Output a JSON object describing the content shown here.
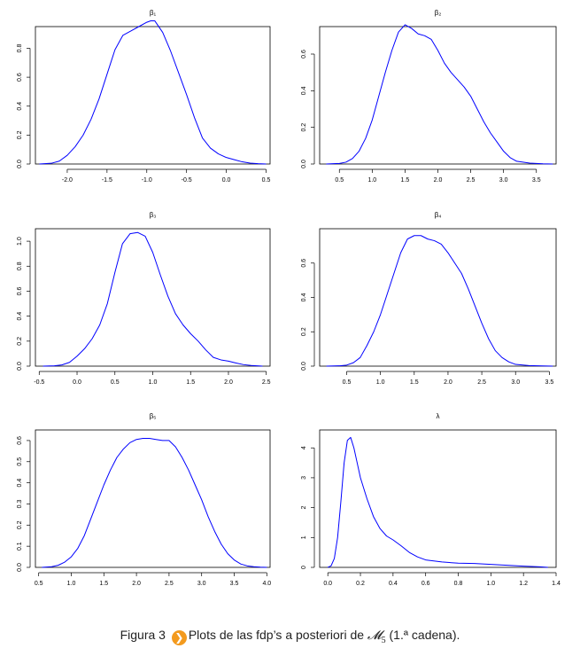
{
  "chart_data": [
    {
      "type": "line",
      "title": "β₁",
      "xlabel": "",
      "ylabel": "",
      "xlim": [
        -2.4,
        0.55
      ],
      "ylim": [
        0,
        0.95
      ],
      "xticks": [
        -2.0,
        -1.5,
        -1.0,
        -0.5,
        0.0,
        0.5
      ],
      "xtick_labels": [
        "-2.0",
        "-1.5",
        "-1.0",
        "-0.5",
        "0.0",
        "0.5"
      ],
      "yticks": [
        0.0,
        0.2,
        0.4,
        0.6,
        0.8
      ],
      "ytick_labels": [
        "0.0",
        "0.2",
        "0.4",
        "0.6",
        "0.8"
      ],
      "series": [
        {
          "color": "#0000ff",
          "x": [
            -2.35,
            -2.2,
            -2.1,
            -2.0,
            -1.9,
            -1.8,
            -1.7,
            -1.6,
            -1.5,
            -1.4,
            -1.3,
            -1.2,
            -1.1,
            -1.0,
            -0.95,
            -0.9,
            -0.8,
            -0.7,
            -0.6,
            -0.5,
            -0.4,
            -0.3,
            -0.2,
            -0.1,
            0.0,
            0.1,
            0.2,
            0.3,
            0.4,
            0.5
          ],
          "y": [
            0.0,
            0.005,
            0.02,
            0.06,
            0.12,
            0.2,
            0.31,
            0.45,
            0.62,
            0.79,
            0.89,
            0.92,
            0.95,
            0.98,
            0.99,
            0.99,
            0.91,
            0.78,
            0.63,
            0.48,
            0.32,
            0.18,
            0.11,
            0.07,
            0.045,
            0.03,
            0.015,
            0.006,
            0.002,
            0.0
          ]
        }
      ]
    },
    {
      "type": "line",
      "title": "β₂",
      "xlabel": "",
      "ylabel": "",
      "xlim": [
        0.2,
        3.8
      ],
      "ylim": [
        0,
        0.75
      ],
      "xticks": [
        0.5,
        1.0,
        1.5,
        2.0,
        2.5,
        3.0,
        3.5
      ],
      "xtick_labels": [
        "0.5",
        "1.0",
        "1.5",
        "2.0",
        "2.5",
        "3.0",
        "3.5"
      ],
      "yticks": [
        0.0,
        0.2,
        0.4,
        0.6
      ],
      "ytick_labels": [
        "0.0",
        "0.2",
        "0.4",
        "0.6"
      ],
      "series": [
        {
          "color": "#0000ff",
          "x": [
            0.3,
            0.5,
            0.6,
            0.7,
            0.8,
            0.9,
            1.0,
            1.1,
            1.2,
            1.3,
            1.4,
            1.5,
            1.6,
            1.7,
            1.8,
            1.9,
            2.0,
            2.1,
            2.2,
            2.3,
            2.4,
            2.5,
            2.6,
            2.7,
            2.8,
            2.9,
            3.0,
            3.1,
            3.2,
            3.4,
            3.6,
            3.75
          ],
          "y": [
            0.0,
            0.003,
            0.01,
            0.03,
            0.07,
            0.14,
            0.24,
            0.37,
            0.5,
            0.62,
            0.72,
            0.76,
            0.74,
            0.71,
            0.7,
            0.68,
            0.62,
            0.55,
            0.5,
            0.46,
            0.42,
            0.37,
            0.3,
            0.23,
            0.17,
            0.12,
            0.07,
            0.035,
            0.015,
            0.005,
            0.001,
            0.0
          ]
        }
      ]
    },
    {
      "type": "line",
      "title": "β₃",
      "xlabel": "",
      "ylabel": "",
      "xlim": [
        -0.55,
        2.55
      ],
      "ylim": [
        0,
        1.1
      ],
      "xticks": [
        -0.5,
        0.0,
        0.5,
        1.0,
        1.5,
        2.0,
        2.5
      ],
      "xtick_labels": [
        "-0.5",
        "0.0",
        "0.5",
        "1.0",
        "1.5",
        "2.0",
        "2.5"
      ],
      "yticks": [
        0.0,
        0.2,
        0.4,
        0.6,
        0.8,
        1.0
      ],
      "ytick_labels": [
        "0.0",
        "0.2",
        "0.4",
        "0.6",
        "0.8",
        "1.0"
      ],
      "series": [
        {
          "color": "#0000ff",
          "x": [
            -0.45,
            -0.3,
            -0.2,
            -0.1,
            0.0,
            0.1,
            0.2,
            0.3,
            0.4,
            0.5,
            0.6,
            0.7,
            0.8,
            0.9,
            1.0,
            1.1,
            1.2,
            1.3,
            1.4,
            1.5,
            1.6,
            1.7,
            1.8,
            1.9,
            2.0,
            2.1,
            2.2,
            2.3,
            2.45
          ],
          "y": [
            0.0,
            0.003,
            0.01,
            0.03,
            0.08,
            0.14,
            0.22,
            0.33,
            0.5,
            0.75,
            0.98,
            1.06,
            1.07,
            1.04,
            0.91,
            0.73,
            0.56,
            0.42,
            0.33,
            0.26,
            0.2,
            0.13,
            0.07,
            0.05,
            0.04,
            0.025,
            0.012,
            0.005,
            0.0
          ]
        }
      ]
    },
    {
      "type": "line",
      "title": "β₄",
      "xlabel": "",
      "ylabel": "",
      "xlim": [
        0.1,
        3.6
      ],
      "ylim": [
        0,
        0.8
      ],
      "xticks": [
        0.5,
        1.0,
        1.5,
        2.0,
        2.5,
        3.0,
        3.5
      ],
      "xtick_labels": [
        "0.5",
        "1.0",
        "1.5",
        "2.0",
        "2.5",
        "3.0",
        "3.5"
      ],
      "yticks": [
        0.0,
        0.2,
        0.4,
        0.6
      ],
      "ytick_labels": [
        "0.0",
        "0.2",
        "0.4",
        "0.6"
      ],
      "series": [
        {
          "color": "#0000ff",
          "x": [
            0.2,
            0.4,
            0.5,
            0.6,
            0.7,
            0.8,
            0.9,
            1.0,
            1.1,
            1.2,
            1.3,
            1.4,
            1.5,
            1.6,
            1.7,
            1.8,
            1.9,
            2.0,
            2.1,
            2.2,
            2.3,
            2.4,
            2.5,
            2.6,
            2.7,
            2.8,
            2.9,
            3.0,
            3.2,
            3.4,
            3.55
          ],
          "y": [
            0.0,
            0.002,
            0.006,
            0.02,
            0.05,
            0.12,
            0.2,
            0.3,
            0.42,
            0.54,
            0.66,
            0.74,
            0.76,
            0.76,
            0.74,
            0.73,
            0.71,
            0.66,
            0.6,
            0.54,
            0.45,
            0.35,
            0.25,
            0.16,
            0.09,
            0.05,
            0.025,
            0.01,
            0.003,
            0.001,
            0.0
          ]
        }
      ]
    },
    {
      "type": "line",
      "title": "β₅",
      "xlabel": "",
      "ylabel": "",
      "xlim": [
        0.45,
        4.05
      ],
      "ylim": [
        0,
        0.65
      ],
      "xticks": [
        0.5,
        1.0,
        1.5,
        2.0,
        2.5,
        3.0,
        3.5,
        4.0
      ],
      "xtick_labels": [
        "0.5",
        "1.0",
        "1.5",
        "2.0",
        "2.5",
        "3.0",
        "3.5",
        "4.0"
      ],
      "yticks": [
        0.0,
        0.1,
        0.2,
        0.3,
        0.4,
        0.5,
        0.6
      ],
      "ytick_labels": [
        "0.0",
        "0.1",
        "0.2",
        "0.3",
        "0.4",
        "0.5",
        "0.6"
      ],
      "series": [
        {
          "color": "#0000ff",
          "x": [
            0.55,
            0.7,
            0.8,
            0.9,
            1.0,
            1.1,
            1.2,
            1.3,
            1.4,
            1.5,
            1.6,
            1.7,
            1.8,
            1.9,
            2.0,
            2.1,
            2.2,
            2.3,
            2.4,
            2.5,
            2.6,
            2.7,
            2.8,
            2.9,
            3.0,
            3.1,
            3.2,
            3.3,
            3.4,
            3.5,
            3.6,
            3.7,
            3.8,
            3.9,
            4.0
          ],
          "y": [
            0.0,
            0.003,
            0.01,
            0.025,
            0.05,
            0.09,
            0.15,
            0.23,
            0.31,
            0.39,
            0.46,
            0.52,
            0.56,
            0.59,
            0.605,
            0.61,
            0.61,
            0.605,
            0.6,
            0.6,
            0.57,
            0.52,
            0.46,
            0.39,
            0.32,
            0.24,
            0.17,
            0.11,
            0.065,
            0.035,
            0.016,
            0.007,
            0.003,
            0.001,
            0.0
          ]
        }
      ]
    },
    {
      "type": "line",
      "title": "λ",
      "xlabel": "",
      "ylabel": "",
      "xlim": [
        -0.05,
        1.4
      ],
      "ylim": [
        0,
        4.6
      ],
      "xticks": [
        0.0,
        0.2,
        0.4,
        0.6,
        0.8,
        1.0,
        1.2,
        1.4
      ],
      "xtick_labels": [
        "0.0",
        "0.2",
        "0.4",
        "0.6",
        "0.8",
        "1.0",
        "1.2",
        "1.4"
      ],
      "yticks": [
        0,
        1,
        2,
        3,
        4
      ],
      "ytick_labels": [
        "0",
        "1",
        "2",
        "3",
        "4"
      ],
      "series": [
        {
          "color": "#0000ff",
          "x": [
            0.0,
            0.02,
            0.04,
            0.06,
            0.08,
            0.1,
            0.12,
            0.14,
            0.16,
            0.18,
            0.2,
            0.24,
            0.28,
            0.32,
            0.36,
            0.4,
            0.45,
            0.5,
            0.55,
            0.6,
            0.7,
            0.8,
            0.9,
            1.0,
            1.1,
            1.2,
            1.3,
            1.35
          ],
          "y": [
            0.0,
            0.05,
            0.3,
            1.0,
            2.2,
            3.5,
            4.25,
            4.35,
            4.0,
            3.5,
            3.0,
            2.3,
            1.7,
            1.3,
            1.05,
            0.92,
            0.72,
            0.5,
            0.35,
            0.25,
            0.18,
            0.14,
            0.13,
            0.1,
            0.07,
            0.04,
            0.02,
            0.0
          ]
        }
      ]
    }
  ],
  "caption": {
    "figure_label": "Figura 3",
    "badge_glyph": "❯",
    "text_before": "Plots de las fdp’s a posteriori de ",
    "math_symbol": "𝓜",
    "math_subscript": "5",
    "text_after": " (1.ª cadena)."
  }
}
